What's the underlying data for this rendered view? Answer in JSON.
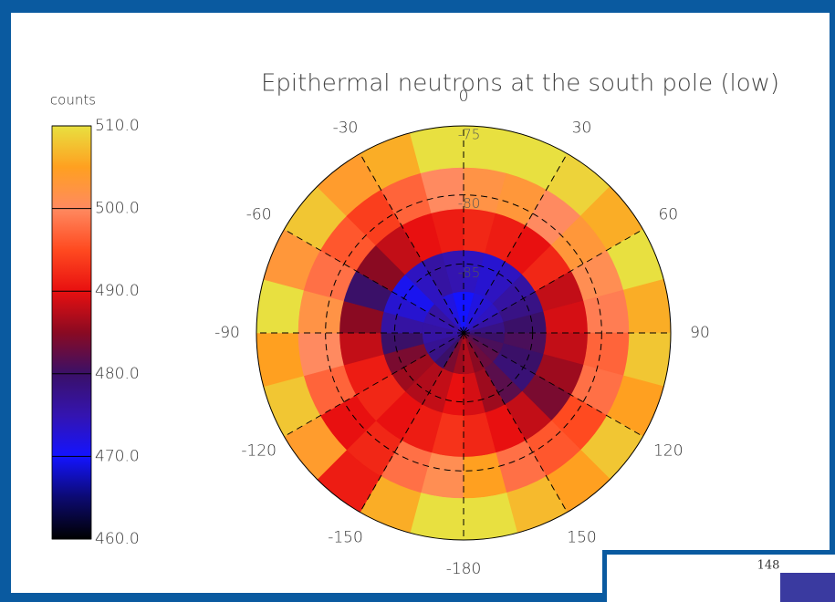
{
  "chart_data": {
    "type": "polar-heatmap",
    "title": "Epithermal neutrons at the south pole (low)",
    "colorbar_label": "counts",
    "rlim": [
      -90,
      -75
    ],
    "lat_bins": [
      -90,
      -87,
      -84,
      -81,
      -78,
      -75
    ],
    "lon_bins": [
      -180,
      -165,
      -150,
      -135,
      -120,
      -105,
      -90,
      -75,
      -60,
      -45,
      -30,
      -15,
      0,
      15,
      30,
      45,
      60,
      75,
      90,
      105,
      120,
      135,
      150,
      165,
      180
    ],
    "values": [
      [
        486,
        484,
        480,
        478,
        477,
        476,
        476,
        475,
        476,
        474,
        472,
        470,
        470,
        472,
        473,
        474,
        476,
        478,
        480,
        481,
        482,
        483,
        485,
        487
      ],
      [
        490,
        488,
        487,
        486,
        484,
        480,
        476,
        473,
        471,
        474,
        476,
        475,
        474,
        473,
        474,
        476,
        478,
        480,
        481,
        480,
        479,
        482,
        486,
        489
      ],
      [
        493,
        491,
        490,
        492,
        491,
        488,
        485,
        480,
        485,
        488,
        490,
        491,
        492,
        491,
        490,
        492,
        488,
        489,
        488,
        486,
        484,
        488,
        490,
        492
      ],
      [
        501,
        498,
        492,
        490,
        497,
        500,
        502,
        498,
        496,
        494,
        497,
        500,
        502,
        503,
        500,
        503,
        501,
        499,
        497,
        498,
        495,
        496,
        498,
        505
      ],
      [
        510,
        506,
        491,
        504,
        508,
        505,
        510,
        503,
        508,
        504,
        506,
        510,
        512,
        512,
        509,
        506,
        511,
        506,
        508,
        505,
        508,
        505,
        507,
        510
      ]
    ],
    "lonticks": [
      -180,
      -150,
      -120,
      -90,
      -60,
      -30,
      0,
      30,
      60,
      90,
      120,
      150
    ],
    "latticks": [
      -75,
      -80,
      -85
    ],
    "zlim": [
      460,
      510
    ],
    "zticks": [
      {
        "value": 460,
        "label": "460.0"
      },
      {
        "value": 470,
        "label": "470.0"
      },
      {
        "value": 480,
        "label": "480.0"
      },
      {
        "value": 490,
        "label": "490.0"
      },
      {
        "value": 500,
        "label": "500.0"
      },
      {
        "value": 510,
        "label": "510.0"
      }
    ],
    "colors": [
      "#000000",
      "#0c0a70",
      "#1414ff",
      "#3414b0",
      "#3a1068",
      "#8a0a22",
      "#e81010",
      "#ff4a20",
      "#ff8a60",
      "#ffa020",
      "#e8e040"
    ],
    "grid": true
  },
  "inset": {
    "label": "148"
  }
}
